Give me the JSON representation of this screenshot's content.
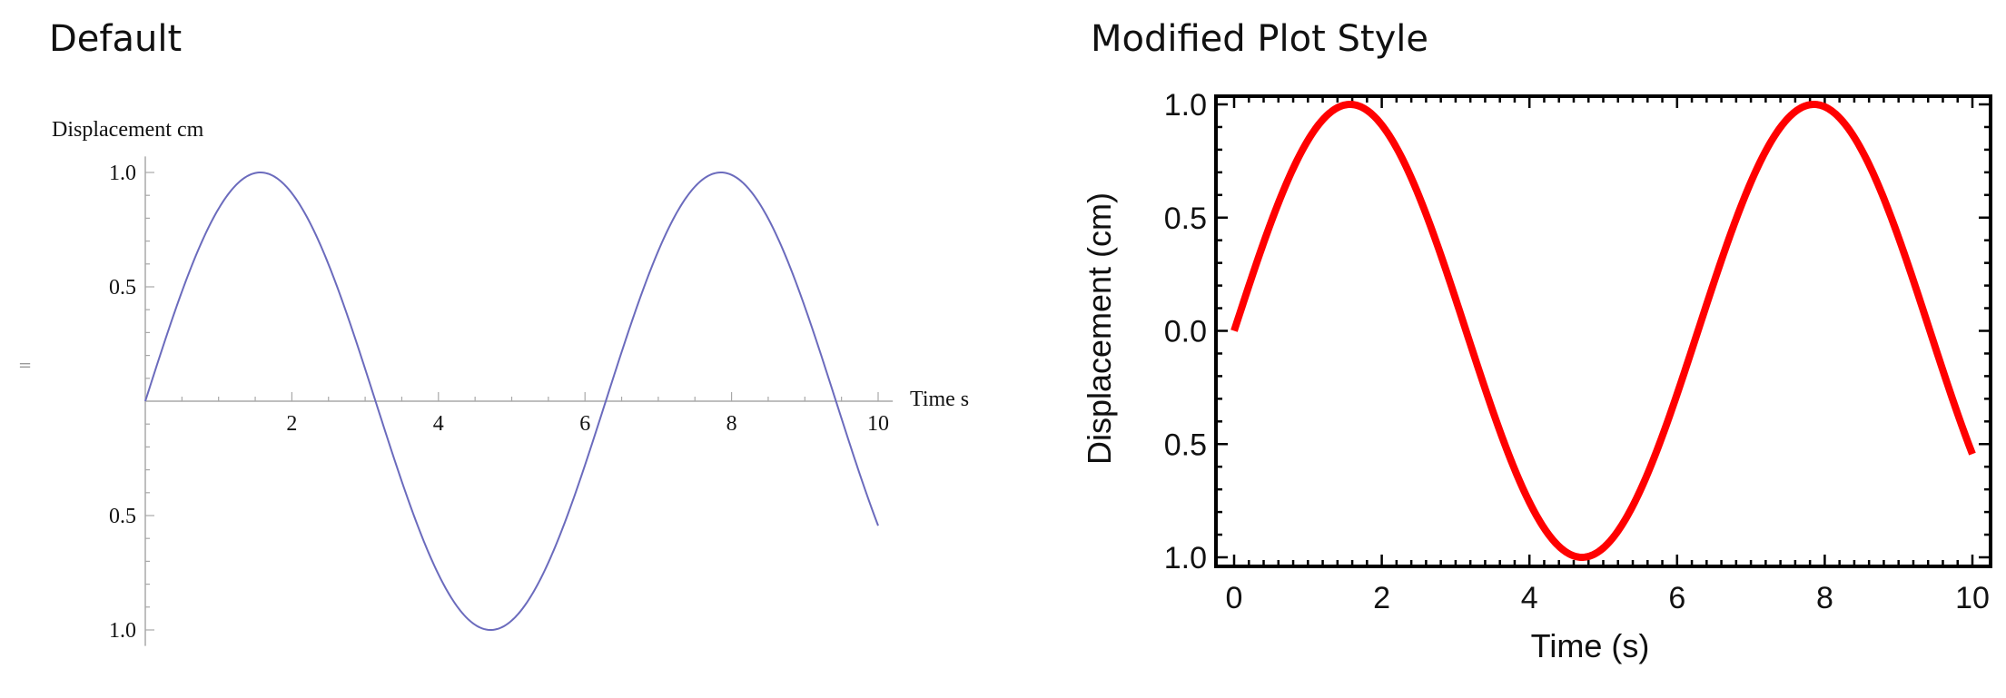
{
  "panels": {
    "left_title": "Default",
    "right_title": "Modified Plot Style",
    "separator_glyph": "="
  },
  "chart_data": [
    {
      "type": "line",
      "title": "Default",
      "xlabel": "Time  s",
      "ylabel": "Displacement  cm",
      "function": "sin(t)",
      "xlim": [
        0,
        10
      ],
      "ylim": [
        -1,
        1
      ],
      "axes_style": "axes-through-origin",
      "x_ticks": [
        "2",
        "4",
        "6",
        "8",
        "10"
      ],
      "x_tick_values": [
        2,
        4,
        6,
        8,
        10
      ],
      "y_ticks": [
        "1.0",
        "0.5",
        "0.5",
        "1.0"
      ],
      "y_tick_values": [
        1.0,
        0.5,
        -0.5,
        -1.0
      ],
      "grid": false,
      "line_color": "#6b6bbd",
      "series": [
        {
          "x": [
            0,
            0.5,
            1,
            1.5,
            2,
            2.5,
            3,
            3.5,
            4,
            4.5,
            5,
            5.5,
            6,
            6.5,
            7,
            7.5,
            8,
            8.5,
            9,
            9.5,
            10
          ],
          "values": [
            0,
            0.479,
            0.841,
            0.997,
            0.909,
            0.598,
            0.141,
            -0.351,
            -0.757,
            -0.978,
            -0.959,
            -0.706,
            -0.279,
            0.215,
            0.657,
            0.938,
            0.989,
            0.798,
            0.412,
            -0.075,
            -0.544
          ]
        }
      ]
    },
    {
      "type": "line",
      "title": "Modified Plot Style",
      "xlabel": "Time (s)",
      "ylabel": "Displacement  (cm)",
      "function": "sin(t)",
      "xlim": [
        0,
        10
      ],
      "ylim": [
        -1,
        1
      ],
      "axes_style": "framed",
      "x_ticks": [
        "0",
        "2",
        "4",
        "6",
        "8",
        "10"
      ],
      "x_tick_values": [
        0,
        2,
        4,
        6,
        8,
        10
      ],
      "y_ticks": [
        "1.0",
        "0.5",
        "0.0",
        "0.5",
        "1.0"
      ],
      "y_tick_values": [
        1.0,
        0.5,
        0.0,
        -0.5,
        -1.0
      ],
      "grid": false,
      "line_color": "#ff0000",
      "series": [
        {
          "x": [
            0,
            0.5,
            1,
            1.5,
            2,
            2.5,
            3,
            3.5,
            4,
            4.5,
            5,
            5.5,
            6,
            6.5,
            7,
            7.5,
            8,
            8.5,
            9,
            9.5,
            10
          ],
          "values": [
            0,
            0.479,
            0.841,
            0.997,
            0.909,
            0.598,
            0.141,
            -0.351,
            -0.757,
            -0.978,
            -0.959,
            -0.706,
            -0.279,
            0.215,
            0.657,
            0.938,
            0.989,
            0.798,
            0.412,
            -0.075,
            -0.544
          ]
        }
      ]
    }
  ]
}
